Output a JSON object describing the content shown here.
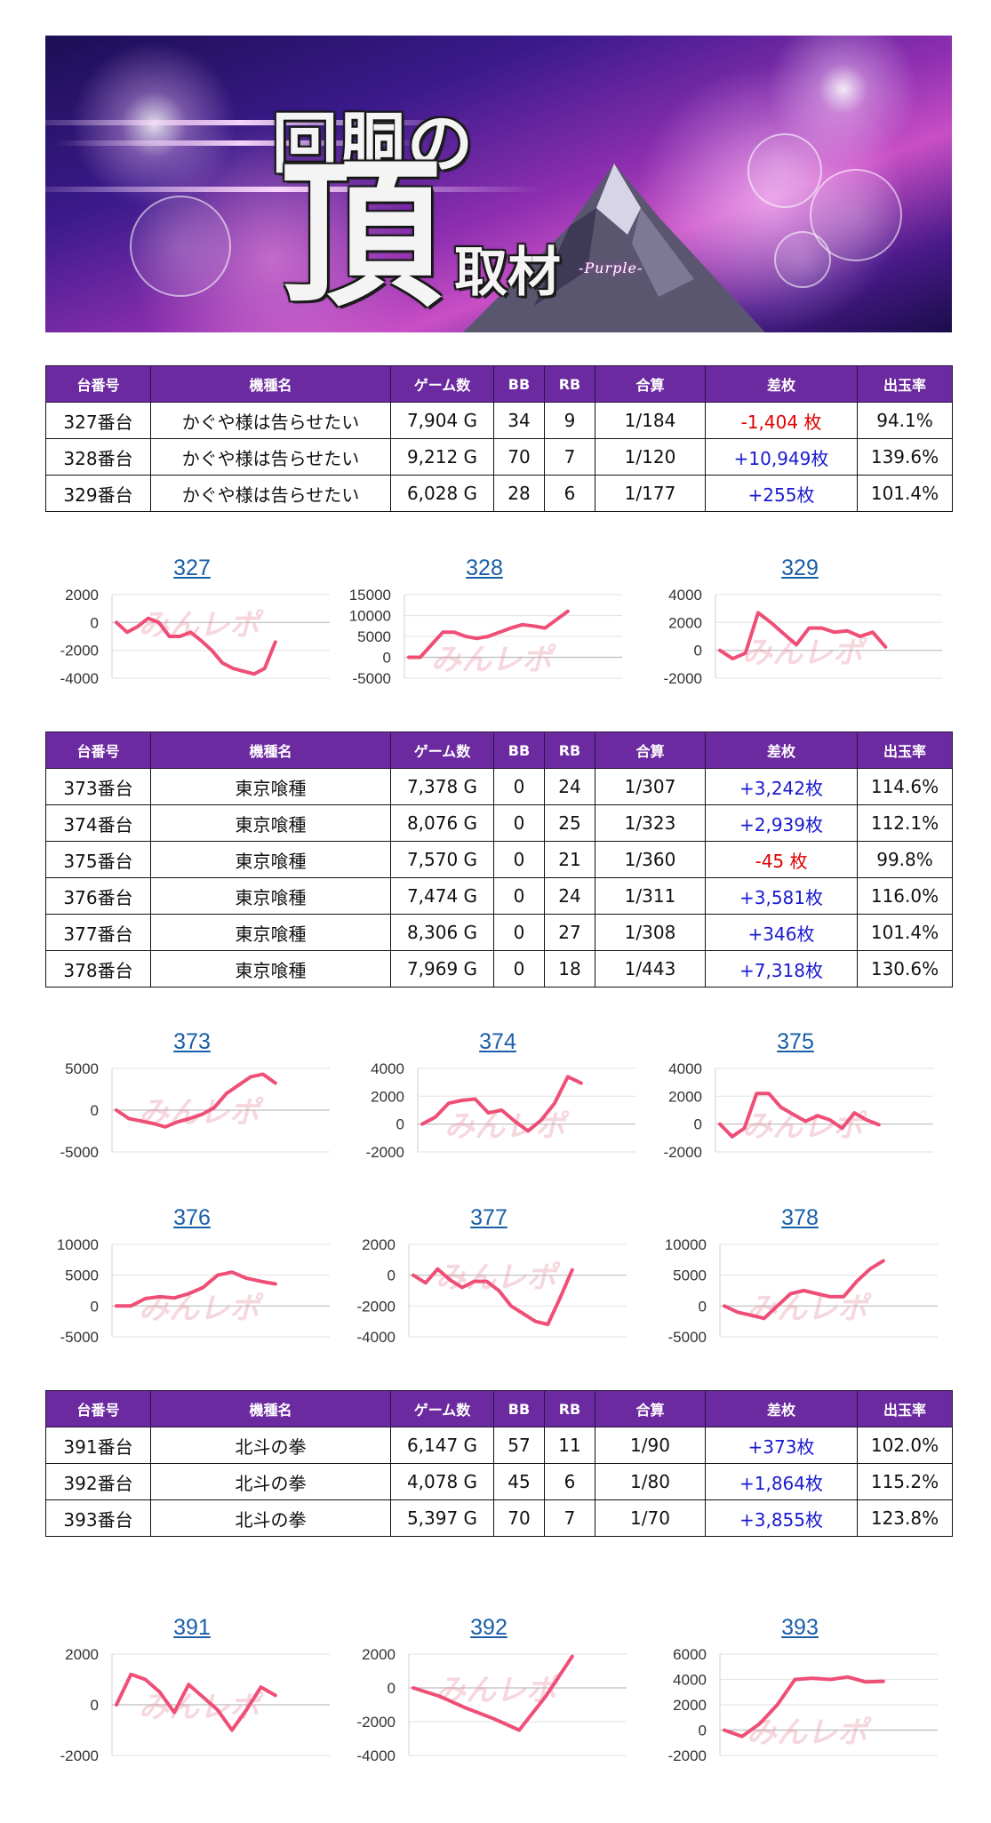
{
  "banner": {
    "title_line1": "回胴の",
    "title_line2": "頂",
    "title_line3": "取材",
    "subtitle": "-Purple-"
  },
  "table_headers": [
    "台番号",
    "機種名",
    "ゲーム数",
    "BB",
    "RB",
    "合算",
    "差枚",
    "出玉率"
  ],
  "tables": [
    {
      "rows": [
        {
          "no": "327番台",
          "machine": "かぐや様は告らせたい",
          "games": "7,904 G",
          "bb": "34",
          "rb": "9",
          "combined": "1/184",
          "diff": "-1,404 枚",
          "rate": "94.1%",
          "sign": "neg"
        },
        {
          "no": "328番台",
          "machine": "かぐや様は告らせたい",
          "games": "9,212 G",
          "bb": "70",
          "rb": "7",
          "combined": "1/120",
          "diff": "+10,949枚",
          "rate": "139.6%",
          "sign": "pos"
        },
        {
          "no": "329番台",
          "machine": "かぐや様は告らせたい",
          "games": "6,028 G",
          "bb": "28",
          "rb": "6",
          "combined": "1/177",
          "diff": "+255枚",
          "rate": "101.4%",
          "sign": "pos"
        }
      ]
    },
    {
      "rows": [
        {
          "no": "373番台",
          "machine": "東京喰種",
          "games": "7,378 G",
          "bb": "0",
          "rb": "24",
          "combined": "1/307",
          "diff": "+3,242枚",
          "rate": "114.6%",
          "sign": "pos"
        },
        {
          "no": "374番台",
          "machine": "東京喰種",
          "games": "8,076 G",
          "bb": "0",
          "rb": "25",
          "combined": "1/323",
          "diff": "+2,939枚",
          "rate": "112.1%",
          "sign": "pos"
        },
        {
          "no": "375番台",
          "machine": "東京喰種",
          "games": "7,570 G",
          "bb": "0",
          "rb": "21",
          "combined": "1/360",
          "diff": "-45 枚",
          "rate": "99.8%",
          "sign": "neg"
        },
        {
          "no": "376番台",
          "machine": "東京喰種",
          "games": "7,474 G",
          "bb": "0",
          "rb": "24",
          "combined": "1/311",
          "diff": "+3,581枚",
          "rate": "116.0%",
          "sign": "pos"
        },
        {
          "no": "377番台",
          "machine": "東京喰種",
          "games": "8,306 G",
          "bb": "0",
          "rb": "27",
          "combined": "1/308",
          "diff": "+346枚",
          "rate": "101.4%",
          "sign": "pos"
        },
        {
          "no": "378番台",
          "machine": "東京喰種",
          "games": "7,969 G",
          "bb": "0",
          "rb": "18",
          "combined": "1/443",
          "diff": "+7,318枚",
          "rate": "130.6%",
          "sign": "pos"
        }
      ]
    },
    {
      "rows": [
        {
          "no": "391番台",
          "machine": "北斗の拳",
          "games": "6,147 G",
          "bb": "57",
          "rb": "11",
          "combined": "1/90",
          "diff": "+373枚",
          "rate": "102.0%",
          "sign": "pos"
        },
        {
          "no": "392番台",
          "machine": "北斗の拳",
          "games": "4,078 G",
          "bb": "45",
          "rb": "6",
          "combined": "1/80",
          "diff": "+1,864枚",
          "rate": "115.2%",
          "sign": "pos"
        },
        {
          "no": "393番台",
          "machine": "北斗の拳",
          "games": "5,397 G",
          "bb": "70",
          "rb": "7",
          "combined": "1/70",
          "diff": "+3,855枚",
          "rate": "123.8%",
          "sign": "pos"
        }
      ]
    }
  ],
  "chart_data": [
    {
      "type": "line",
      "title": "327",
      "ylim": [
        -4000,
        2000
      ],
      "yticks": [
        "2000",
        "0",
        "-2000",
        "-4000"
      ],
      "watermark": "みんレポ",
      "values": [
        0,
        -700,
        -300,
        300,
        0,
        -1000,
        -1000,
        -700,
        -1300,
        -2000,
        -2900,
        -3300,
        -3500,
        -3700,
        -3300,
        -1400
      ]
    },
    {
      "type": "line",
      "title": "328",
      "ylim": [
        -5000,
        15000
      ],
      "yticks": [
        "15000",
        "10000",
        "5000",
        "0",
        "-5000"
      ],
      "watermark": "みんレポ",
      "values": [
        0,
        0,
        3000,
        6000,
        6000,
        5000,
        4500,
        5000,
        6000,
        7000,
        7800,
        7500,
        7000,
        9000,
        11000
      ]
    },
    {
      "type": "line",
      "title": "329",
      "ylim": [
        -2000,
        4000
      ],
      "yticks": [
        "4000",
        "2000",
        "0",
        "-2000"
      ],
      "watermark": "みんレポ",
      "values": [
        0,
        -600,
        -200,
        2700,
        2000,
        1200,
        400,
        1600,
        1600,
        1300,
        1400,
        1000,
        1300,
        250
      ]
    },
    {
      "type": "line",
      "title": "373",
      "ylim": [
        -5000,
        5000
      ],
      "yticks": [
        "5000",
        "0",
        "-5000"
      ],
      "watermark": "みんレポ",
      "values": [
        0,
        -1000,
        -1300,
        -1600,
        -2000,
        -1400,
        -1000,
        -500,
        300,
        2000,
        3000,
        4000,
        4300,
        3242
      ]
    },
    {
      "type": "line",
      "title": "374",
      "ylim": [
        -2000,
        4000
      ],
      "yticks": [
        "4000",
        "2000",
        "0",
        "-2000"
      ],
      "watermark": "みんレポ",
      "values": [
        0,
        500,
        1500,
        1700,
        1800,
        800,
        1000,
        200,
        -500,
        300,
        1500,
        3400,
        2939
      ]
    },
    {
      "type": "line",
      "title": "375",
      "ylim": [
        -2000,
        4000
      ],
      "yticks": [
        "4000",
        "2000",
        "0",
        "-2000"
      ],
      "watermark": "みんレポ",
      "values": [
        0,
        -900,
        -300,
        2200,
        2200,
        1200,
        700,
        200,
        600,
        300,
        -300,
        800,
        300,
        -45
      ]
    },
    {
      "type": "line",
      "title": "376",
      "ylim": [
        -5000,
        10000
      ],
      "yticks": [
        "10000",
        "5000",
        "0",
        "-5000"
      ],
      "watermark": "みんレポ",
      "values": [
        0,
        0,
        1200,
        1500,
        1300,
        2000,
        3000,
        5000,
        5500,
        4500,
        4000,
        3581
      ]
    },
    {
      "type": "line",
      "title": "377",
      "ylim": [
        -4000,
        2000
      ],
      "yticks": [
        "2000",
        "0",
        "-2000",
        "-4000"
      ],
      "watermark": "みんレポ",
      "values": [
        0,
        -500,
        400,
        -300,
        -800,
        -400,
        -400,
        -1000,
        -2000,
        -2500,
        -3000,
        -3200,
        -1500,
        346
      ]
    },
    {
      "type": "line",
      "title": "378",
      "ylim": [
        -5000,
        10000
      ],
      "yticks": [
        "10000",
        "5000",
        "0",
        "-5000"
      ],
      "watermark": "みんレポ",
      "values": [
        0,
        -1000,
        -1500,
        -2000,
        0,
        2000,
        2500,
        2000,
        1500,
        1500,
        4000,
        6000,
        7318
      ]
    },
    {
      "type": "line",
      "title": "391",
      "ylim": [
        -2000,
        2000
      ],
      "yticks": [
        "2000",
        "0",
        "-2000"
      ],
      "watermark": "みんレポ",
      "values": [
        0,
        1200,
        1000,
        500,
        -300,
        800,
        300,
        -200,
        -1000,
        -200,
        700,
        373
      ]
    },
    {
      "type": "line",
      "title": "392",
      "ylim": [
        -4000,
        2000
      ],
      "yticks": [
        "2000",
        "0",
        "-2000",
        "-4000"
      ],
      "watermark": "みんレポ",
      "values": [
        0,
        -500,
        -1200,
        -1800,
        -2500,
        -500,
        1864
      ]
    },
    {
      "type": "line",
      "title": "393",
      "ylim": [
        -2000,
        6000
      ],
      "yticks": [
        "6000",
        "4000",
        "2000",
        "0",
        "-2000"
      ],
      "watermark": "みんレポ",
      "values": [
        0,
        -500,
        500,
        2000,
        4000,
        4100,
        4000,
        4200,
        3800,
        3855
      ]
    }
  ]
}
